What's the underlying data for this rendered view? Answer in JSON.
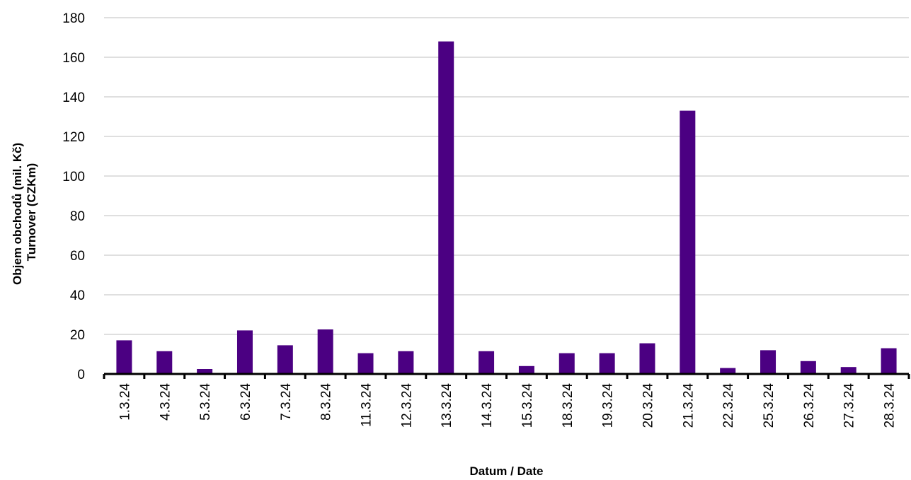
{
  "colors": {
    "bar": "#4b0082",
    "grid": "#bfbfbf",
    "axis": "#000000",
    "background": "#ffffff"
  },
  "chart_data": {
    "type": "bar",
    "title": "",
    "xlabel": "Datum / Date",
    "ylabel_line1": "Objem obchodů (mil. Kč)",
    "ylabel_line2": "Turnover (CZKm)",
    "categories": [
      "1.3.24",
      "4.3.24",
      "5.3.24",
      "6.3.24",
      "7.3.24",
      "8.3.24",
      "11.3.24",
      "12.3.24",
      "13.3.24",
      "14.3.24",
      "15.3.24",
      "18.3.24",
      "19.3.24",
      "20.3.24",
      "21.3.24",
      "22.3.24",
      "25.3.24",
      "26.3.24",
      "27.3.24",
      "28.3.24"
    ],
    "values": [
      17,
      11.5,
      2.5,
      22,
      14.5,
      22.5,
      10.5,
      11.5,
      168,
      11.5,
      4,
      10.5,
      10.5,
      15.5,
      133,
      3,
      12,
      6.5,
      3.5,
      13
    ],
    "ylim": [
      0,
      180
    ],
    "yticks": [
      0,
      20,
      40,
      60,
      80,
      100,
      120,
      140,
      160,
      180
    ],
    "grid": true,
    "legend": "none"
  }
}
